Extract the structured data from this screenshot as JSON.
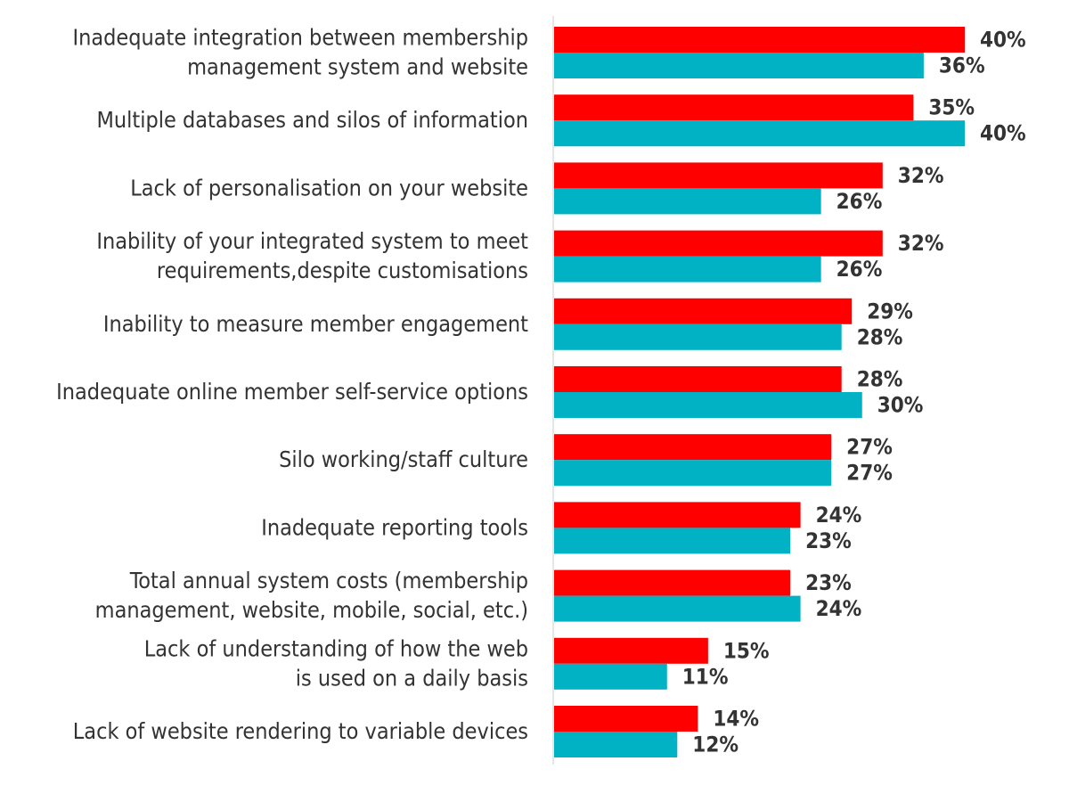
{
  "chart_data": {
    "type": "bar",
    "orientation": "horizontal",
    "categories": [
      [
        "Inadequate integration between membership",
        "management system and website"
      ],
      [
        "Multiple databases and silos of information"
      ],
      [
        "Lack of personalisation on your website"
      ],
      [
        "Inability of your integrated system to meet",
        "requirements,despite customisations"
      ],
      [
        "Inability to measure member engagement"
      ],
      [
        "Inadequate online member self-service options"
      ],
      [
        "Silo working/staff culture"
      ],
      [
        "Inadequate reporting tools"
      ],
      [
        "Total annual system costs (membership",
        "management, website, mobile, social, etc.)"
      ],
      [
        "Lack of understanding of how the web",
        "is used on a daily basis"
      ],
      [
        "Lack of website rendering to variable devices"
      ]
    ],
    "series": [
      {
        "color": "#ff0000",
        "values": [
          40,
          35,
          32,
          32,
          29,
          28,
          27,
          24,
          23,
          15,
          14
        ],
        "labels": [
          "40%",
          "35%",
          "32%",
          "32%",
          "29%",
          "28%",
          "27%",
          "24%",
          "23%",
          "15%",
          "14%"
        ]
      },
      {
        "color": "#00b2c3",
        "values": [
          36,
          40,
          26,
          26,
          28,
          30,
          27,
          23,
          24,
          11,
          12
        ],
        "labels": [
          "36%",
          "40%",
          "26%",
          "26%",
          "28%",
          "30%",
          "27%",
          "23%",
          "24%",
          "11%",
          "12%"
        ]
      }
    ],
    "xlim": [
      0,
      40
    ],
    "title": "",
    "xlabel": "",
    "ylabel": "",
    "legend": "none",
    "grid": false
  }
}
